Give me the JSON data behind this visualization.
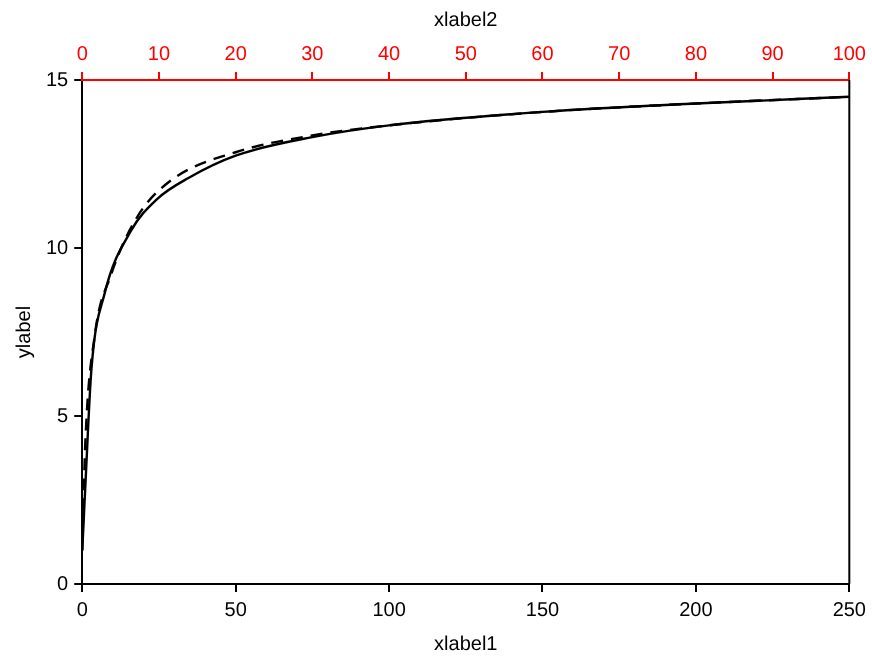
{
  "chart_data": {
    "type": "line",
    "xlabel": "xlabel1",
    "ylabel": "ylabel",
    "x2label": "xlabel2",
    "xlim": [
      0,
      250
    ],
    "xticks": [
      0,
      50,
      100,
      150,
      200,
      250
    ],
    "x2lim": [
      0,
      100
    ],
    "x2ticks": [
      0,
      10,
      20,
      30,
      40,
      50,
      60,
      70,
      80,
      90,
      100
    ],
    "ylim": [
      0,
      15
    ],
    "yticks": [
      0,
      5,
      10,
      15
    ],
    "grid": false,
    "legend": false,
    "marker": "none",
    "series": [
      {
        "color": "#000000",
        "line_style": "solid",
        "x": [
          0,
          1,
          3,
          7.3,
          15.8,
          24.3,
          34.9,
          50,
          75,
          100,
          150,
          200,
          250
        ],
        "values": [
          1.0,
          2.9,
          6.4,
          8.65,
          10.5,
          11.45,
          12.1,
          12.75,
          13.3,
          13.65,
          14.05,
          14.3,
          14.5
        ]
      },
      {
        "color": "#000000",
        "line_style": "dashed",
        "axis": "x2",
        "x": [
          0,
          0.4,
          1.6,
          3.75,
          7.1,
          11.5,
          20,
          30,
          40,
          60,
          80,
          100
        ],
        "values": [
          1.0,
          4.2,
          7.35,
          9.2,
          10.9,
          12.0,
          12.85,
          13.35,
          13.65,
          14.05,
          14.3,
          14.5
        ]
      }
    ]
  }
}
